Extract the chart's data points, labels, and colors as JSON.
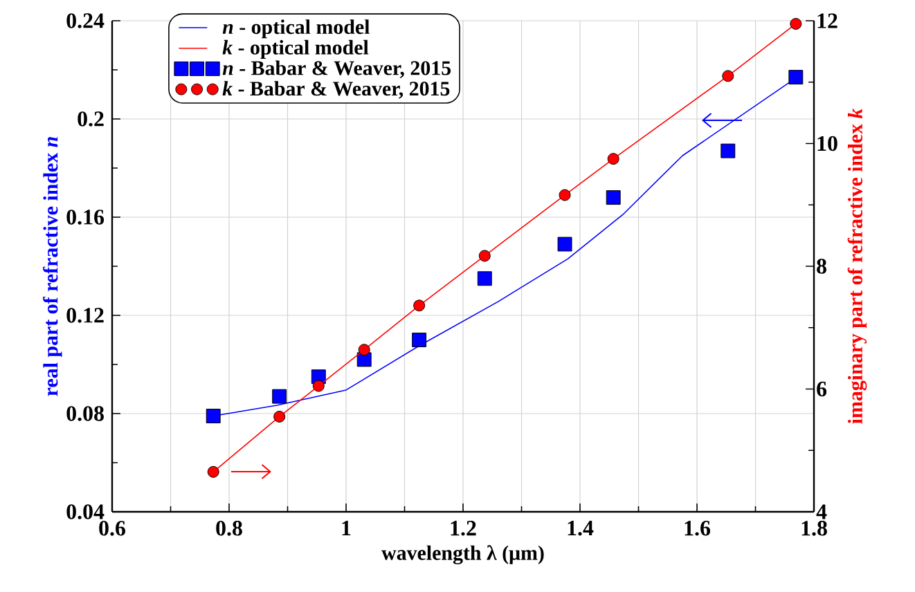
{
  "chart_data": {
    "type": "line",
    "xlabel": "wavelength λ (μm)",
    "ylabel": "real part of refractive index *n*",
    "y2label": "imaginary part of refractive index *k*",
    "xlim": [
      0.6,
      1.8
    ],
    "xticks": [
      0.6,
      0.8,
      1,
      1.2,
      1.4,
      1.6,
      1.8
    ],
    "ylim": [
      0.04,
      0.24
    ],
    "yticks": [
      0.04,
      0.08,
      0.12,
      0.16,
      0.2,
      0.24
    ],
    "y2lim": [
      4,
      12
    ],
    "y2ticks": [
      4,
      6,
      8,
      10,
      12
    ],
    "grid": true,
    "legend": "top left",
    "series": [
      {
        "name": "*n* - optical model",
        "color": "#0000ff",
        "marker": "none",
        "axis": "y",
        "x": [
          0.773,
          0.882,
          1.0,
          1.125,
          1.26,
          1.379,
          1.473,
          1.575,
          1.765
        ],
        "values": [
          0.079,
          0.0834,
          0.0896,
          0.1076,
          0.1256,
          0.143,
          0.161,
          0.185,
          0.216
        ]
      },
      {
        "name": "*k* - optical model",
        "color": "#ff0000",
        "marker": "none",
        "axis": "y2",
        "x": [
          0.773,
          0.886,
          0.953,
          1.031,
          1.125,
          1.237,
          1.374,
          1.457,
          1.653,
          1.769
        ],
        "values": [
          4.65,
          5.55,
          6.05,
          6.64,
          7.36,
          8.17,
          9.16,
          9.75,
          11.1,
          11.95
        ]
      },
      {
        "name": "*n* - Babar & Weaver, 2015",
        "type": "scatter",
        "color": "#0000ff",
        "marker": "square",
        "axis": "y",
        "x": [
          0.773,
          0.886,
          0.953,
          1.031,
          1.125,
          1.237,
          1.374,
          1.457,
          1.653,
          1.769
        ],
        "values": [
          0.079,
          0.087,
          0.095,
          0.102,
          0.11,
          0.135,
          0.149,
          0.168,
          0.187,
          0.217
        ]
      },
      {
        "name": "*k* - Babar & Weaver, 2015",
        "type": "scatter",
        "color": "#ff0000",
        "marker": "circle",
        "axis": "y2",
        "x": [
          0.773,
          0.886,
          0.953,
          1.031,
          1.125,
          1.237,
          1.374,
          1.457,
          1.653,
          1.769
        ],
        "values": [
          4.65,
          5.55,
          6.05,
          6.64,
          7.36,
          8.17,
          9.16,
          9.75,
          11.1,
          11.95
        ]
      }
    ]
  }
}
